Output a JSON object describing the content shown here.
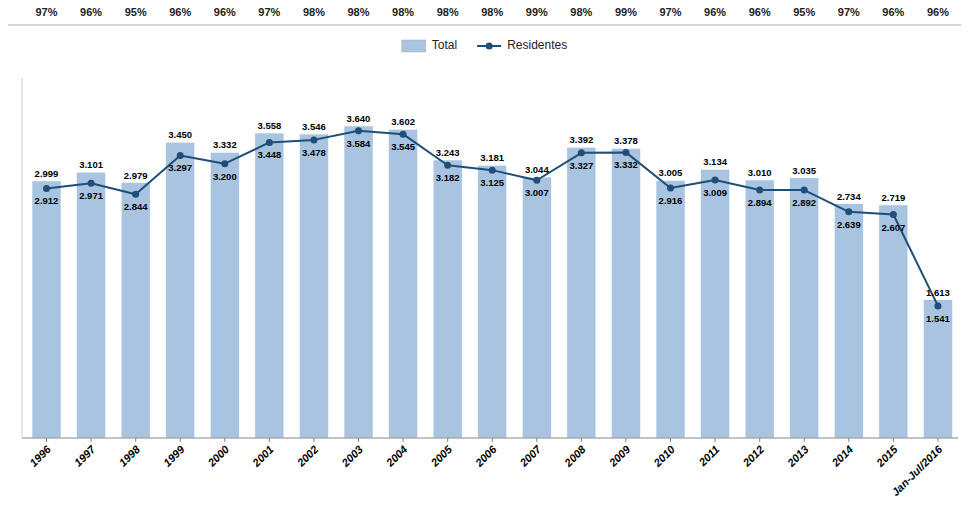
{
  "chart_data": {
    "type": "bar",
    "categories": [
      "1996",
      "1997",
      "1998",
      "1999",
      "2000",
      "2001",
      "2002",
      "2003",
      "2004",
      "2005",
      "2006",
      "2007",
      "2008",
      "2009",
      "2010",
      "2011",
      "2012",
      "2013",
      "2014",
      "2015",
      "Jan-Jul/2016"
    ],
    "series": [
      {
        "name": "Total",
        "type": "bar",
        "color": "#a8c4e0",
        "values": [
          2999,
          3101,
          2979,
          3450,
          3332,
          3558,
          3546,
          3640,
          3602,
          3243,
          3181,
          3044,
          3392,
          3378,
          3005,
          3134,
          3010,
          3035,
          2734,
          2719,
          1613
        ],
        "value_labels": [
          "2.999",
          "3.101",
          "2.979",
          "3.450",
          "3.332",
          "3.558",
          "3.546",
          "3.640",
          "3.602",
          "3.243",
          "3.181",
          "3.044",
          "3.392",
          "3.378",
          "3.005",
          "3.134",
          "3.010",
          "3.035",
          "2.734",
          "2.719",
          "1.613"
        ]
      },
      {
        "name": "Residentes",
        "type": "line",
        "color": "#1f4e79",
        "marker": "circle",
        "values": [
          2912,
          2971,
          2844,
          3297,
          3200,
          3448,
          3478,
          3584,
          3545,
          3182,
          3125,
          3007,
          3327,
          3332,
          2916,
          3009,
          2894,
          2892,
          2639,
          2607,
          1541
        ],
        "value_labels": [
          "2.912",
          "2.971",
          "2.844",
          "3.297",
          "3.200",
          "3.448",
          "3.478",
          "3.584",
          "3.545",
          "3.182",
          "3.125",
          "3.007",
          "3.327",
          "3.332",
          "2.916",
          "3.009",
          "2.894",
          "2.892",
          "2.639",
          "2.607",
          "1.541"
        ]
      }
    ],
    "annotations": [
      "97%",
      "96%",
      "95%",
      "96%",
      "96%",
      "97%",
      "98%",
      "98%",
      "98%",
      "98%",
      "98%",
      "99%",
      "98%",
      "99%",
      "97%",
      "96%",
      "96%",
      "95%",
      "97%",
      "96%",
      "96%"
    ],
    "ylim": [
      0,
      4200
    ],
    "grid": false,
    "legend": "top",
    "data_labels": true,
    "tick_labels": "x"
  }
}
